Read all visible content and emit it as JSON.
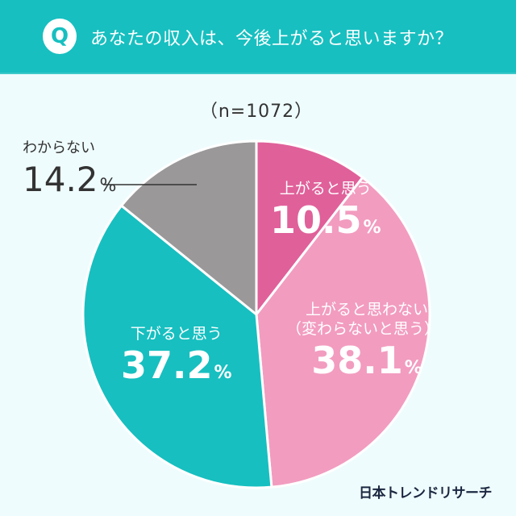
{
  "header": {
    "badge": "Q",
    "title": "あなたの収入は、今後上がると思いますか？"
  },
  "sample": "（n=1072）",
  "chart_data": {
    "type": "pie",
    "start": "top, clockwise",
    "slices": [
      {
        "label": "上がると思う",
        "value": 10.5,
        "color": "#e0609a"
      },
      {
        "label": "上がると思わない（変わらないと思う）",
        "label_lines": [
          "上がると思わない",
          "（変わらないと思う）"
        ],
        "value": 38.1,
        "color": "#f29cc0"
      },
      {
        "label": "下がると思う",
        "value": 37.2,
        "color": "#17bfc0"
      },
      {
        "label": "わからない",
        "value": 14.2,
        "color": "#9a9899"
      }
    ],
    "unit": "%"
  },
  "logo": "日本トレンドリサーチ"
}
